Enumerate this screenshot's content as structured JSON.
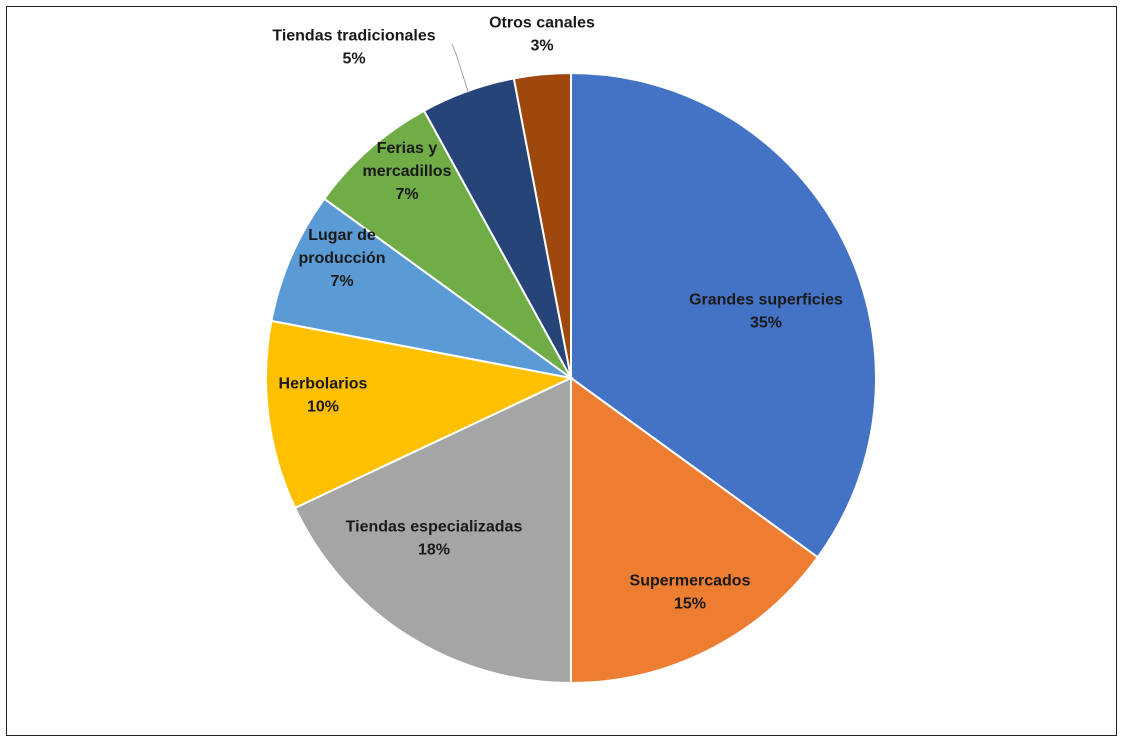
{
  "chart_data": {
    "type": "pie",
    "title": "",
    "start_angle_deg": 0,
    "direction": "clockwise",
    "slices": [
      {
        "label": "Grandes superficies",
        "value_label": "35%",
        "value": 35,
        "color": "#4472C4"
      },
      {
        "label": "Supermercados",
        "value_label": "15%",
        "value": 15,
        "color": "#ED7D31"
      },
      {
        "label": "Tiendas especializadas",
        "value_label": "18%",
        "value": 18,
        "color": "#A5A5A5"
      },
      {
        "label": "Herbolarios",
        "value_label": "10%",
        "value": 10,
        "color": "#FFC000"
      },
      {
        "label": "Lugar de producción",
        "value_label": "7%",
        "value": 7,
        "color": "#5B9BD5"
      },
      {
        "label": "Ferias y mercadillos",
        "value_label": "7%",
        "value": 7,
        "color": "#70AD47"
      },
      {
        "label": "Tiendas tradicionales",
        "value_label": "5%",
        "value": 5,
        "color": "#264478"
      },
      {
        "label": "Otros canales",
        "value_label": "3%",
        "value": 3,
        "color": "#9E480E"
      }
    ]
  }
}
